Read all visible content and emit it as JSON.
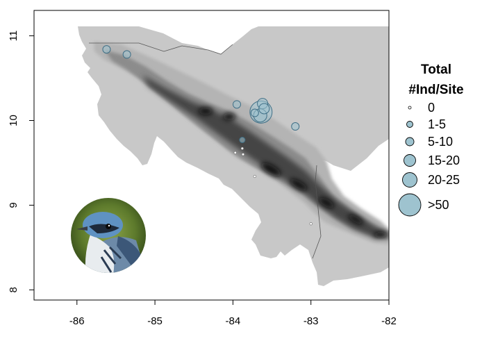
{
  "map": {
    "x_ticks": [
      {
        "value": -86,
        "label": "-86"
      },
      {
        "value": -85,
        "label": "-85"
      },
      {
        "value": -84,
        "label": "-84"
      },
      {
        "value": -83,
        "label": "-83"
      },
      {
        "value": -82,
        "label": "-82"
      }
    ],
    "y_ticks": [
      {
        "value": 8,
        "label": "8"
      },
      {
        "value": 9,
        "label": "9"
      },
      {
        "value": 10,
        "label": "10"
      },
      {
        "value": 11,
        "label": "11"
      }
    ],
    "xlim": [
      -86.55,
      -82.0
    ],
    "ylim": [
      7.88,
      11.3
    ],
    "colors": {
      "sea": "#ffffff",
      "lowland": "#c8c8c8",
      "hills": "#aaaaaa",
      "mountains": "#7a7a7a",
      "peaks": "#2a2a2a",
      "circle_fill": "#9ec3cf",
      "circle_stroke": "#3f6f86"
    },
    "sites": [
      {
        "lon": -85.62,
        "lat": 10.84,
        "class": 2
      },
      {
        "lon": -85.36,
        "lat": 10.78,
        "class": 2
      },
      {
        "lon": -83.95,
        "lat": 10.19,
        "class": 2
      },
      {
        "lon": -83.62,
        "lat": 10.2,
        "class": 3
      },
      {
        "lon": -83.6,
        "lat": 10.14,
        "class": 3
      },
      {
        "lon": -83.72,
        "lat": 10.09,
        "class": 2
      },
      {
        "lon": -83.65,
        "lat": 10.06,
        "class": 4
      },
      {
        "lon": -83.64,
        "lat": 10.1,
        "class": 5
      },
      {
        "lon": -83.2,
        "lat": 9.93,
        "class": 2
      },
      {
        "lon": -83.88,
        "lat": 9.77,
        "class": 1
      },
      {
        "lon": -83.88,
        "lat": 9.67,
        "class": 0
      },
      {
        "lon": -83.97,
        "lat": 9.62,
        "class": 0
      },
      {
        "lon": -83.87,
        "lat": 9.6,
        "class": 0
      },
      {
        "lon": -83.72,
        "lat": 9.34,
        "class": 0
      },
      {
        "lon": -83.0,
        "lat": 8.78,
        "class": 0
      }
    ]
  },
  "legend": {
    "title_line1": "Total",
    "title_line2": "#Ind/Site",
    "items": [
      {
        "label": "0",
        "size_class": 0
      },
      {
        "label": "1-5",
        "size_class": 1
      },
      {
        "label": "5-10",
        "size_class": 2
      },
      {
        "label": "15-20",
        "size_class": 3
      },
      {
        "label": "20-25",
        "size_class": 4
      },
      {
        "label": ">50",
        "size_class": 5
      }
    ]
  },
  "inset": {
    "subject": "cerulean-warbler-photo"
  }
}
